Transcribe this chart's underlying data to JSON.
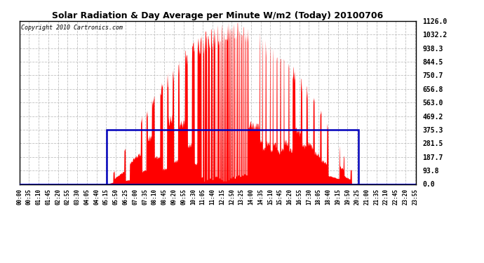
{
  "title": "Solar Radiation & Day Average per Minute W/m2 (Today) 20100706",
  "copyright": "Copyright 2010 Cartronics.com",
  "bg_color": "#ffffff",
  "plot_bg_color": "#ffffff",
  "bar_color": "#ff0000",
  "line_color": "#0000bb",
  "grid_color": "#c0c0c0",
  "ytick_labels": [
    "0.0",
    "93.8",
    "187.7",
    "281.5",
    "375.3",
    "469.2",
    "563.0",
    "656.8",
    "750.7",
    "844.5",
    "938.3",
    "1032.2",
    "1126.0"
  ],
  "ytick_values": [
    0.0,
    93.8,
    187.7,
    281.5,
    375.3,
    469.2,
    563.0,
    656.8,
    750.7,
    844.5,
    938.3,
    1032.2,
    1126.0
  ],
  "ymax": 1126.0,
  "ymin": 0.0,
  "day_avg": 375.3,
  "sunrise_min": 317,
  "sunset_min": 1230,
  "solar_peak_min": 752,
  "total_minutes": 1440,
  "xtick_step": 35
}
